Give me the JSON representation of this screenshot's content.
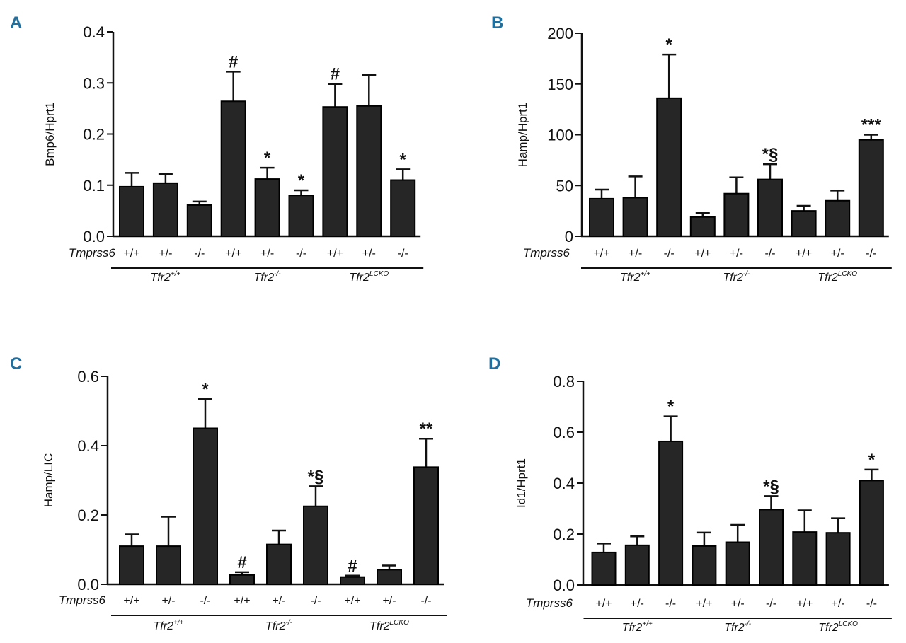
{
  "colors": {
    "panel_letter": "#1f6f9f",
    "bar": "#262626",
    "axis": "#111111"
  },
  "chart_data": [
    {
      "type": "bar",
      "panel": "A",
      "ylabel": "Bmp6/Hprt1",
      "ylim": [
        0,
        0.4
      ],
      "yticks": [
        0.0,
        0.1,
        0.2,
        0.3,
        0.4
      ],
      "ytick_labels": [
        "0.0",
        "0.1",
        "0.2",
        "0.3",
        "0.4"
      ],
      "row_label": "Tmprss6",
      "categories": [
        "+/+",
        "+/-",
        "-/-",
        "+/+",
        "+/-",
        "-/-",
        "+/+",
        "+/-",
        "-/-"
      ],
      "values": [
        0.097,
        0.104,
        0.061,
        0.264,
        0.112,
        0.08,
        0.253,
        0.255,
        0.11
      ],
      "errors": [
        0.027,
        0.018,
        0.007,
        0.058,
        0.022,
        0.01,
        0.045,
        0.061,
        0.021
      ],
      "annotations": [
        "",
        "",
        "",
        "#",
        "*",
        "*",
        "#",
        "",
        "*"
      ],
      "groups": [
        {
          "base": "Tfr2",
          "sup": "+/+"
        },
        {
          "base": "Tfr2",
          "sup": "-/-"
        },
        {
          "base": "Tfr2",
          "sup": "LCKO"
        }
      ]
    },
    {
      "type": "bar",
      "panel": "B",
      "ylabel": "Hamp/Hprt1",
      "ylim": [
        0,
        200
      ],
      "yticks": [
        0,
        50,
        100,
        150,
        200
      ],
      "ytick_labels": [
        "0",
        "50",
        "100",
        "150",
        "200"
      ],
      "row_label": "Tmprss6",
      "categories": [
        "+/+",
        "+/-",
        "-/-",
        "+/+",
        "+/-",
        "-/-",
        "+/+",
        "+/-",
        "-/-"
      ],
      "values": [
        37,
        38,
        136,
        19,
        42,
        56,
        25,
        35,
        95
      ],
      "errors": [
        9,
        21,
        43,
        4,
        16,
        15,
        5,
        10,
        5
      ],
      "annotations": [
        "",
        "",
        "*",
        "",
        "",
        "*§",
        "",
        "",
        "***"
      ],
      "groups": [
        {
          "base": "Tfr2",
          "sup": "+/+"
        },
        {
          "base": "Tfr2",
          "sup": "-/-"
        },
        {
          "base": "Tfr2",
          "sup": "LCKO"
        }
      ]
    },
    {
      "type": "bar",
      "panel": "C",
      "ylabel": "Hamp/LIC",
      "ylim": [
        0,
        0.6
      ],
      "yticks": [
        0.0,
        0.2,
        0.4,
        0.6
      ],
      "ytick_labels": [
        "0.0",
        "0.2",
        "0.4",
        "0.6"
      ],
      "row_label": "Tmprss6",
      "categories": [
        "+/+",
        "+/-",
        "-/-",
        "+/+",
        "+/-",
        "-/-",
        "+/+",
        "+/-",
        "-/-"
      ],
      "values": [
        0.11,
        0.11,
        0.45,
        0.027,
        0.115,
        0.225,
        0.021,
        0.042,
        0.338
      ],
      "errors": [
        0.034,
        0.085,
        0.085,
        0.008,
        0.04,
        0.058,
        0.004,
        0.012,
        0.082
      ],
      "annotations": [
        "",
        "",
        "*",
        "#",
        "",
        "*§",
        "#",
        "",
        "**"
      ],
      "groups": [
        {
          "base": "Tfr2",
          "sup": "+/+"
        },
        {
          "base": "Tfr2",
          "sup": "-/-"
        },
        {
          "base": "Tfr2",
          "sup": "LCKO"
        }
      ]
    },
    {
      "type": "bar",
      "panel": "D",
      "ylabel": "Id1/Hprt1",
      "ylim": [
        0,
        0.8
      ],
      "yticks": [
        0.0,
        0.2,
        0.4,
        0.6,
        0.8
      ],
      "ytick_labels": [
        "0.0",
        "0.2",
        "0.4",
        "0.6",
        "0.8"
      ],
      "row_label": "Tmprss6",
      "categories": [
        "+/+",
        "+/-",
        "-/-",
        "+/+",
        "+/-",
        "-/-",
        "+/+",
        "+/-",
        "-/-"
      ],
      "values": [
        0.128,
        0.156,
        0.564,
        0.153,
        0.168,
        0.296,
        0.208,
        0.205,
        0.41
      ],
      "errors": [
        0.035,
        0.035,
        0.098,
        0.053,
        0.068,
        0.053,
        0.085,
        0.057,
        0.043
      ],
      "annotations": [
        "",
        "",
        "*",
        "",
        "",
        "*§",
        "",
        "",
        "*"
      ],
      "groups": [
        {
          "base": "Tfr2",
          "sup": "+/+"
        },
        {
          "base": "Tfr2",
          "sup": "-/-"
        },
        {
          "base": "Tfr2",
          "sup": "LCKO"
        }
      ]
    }
  ]
}
